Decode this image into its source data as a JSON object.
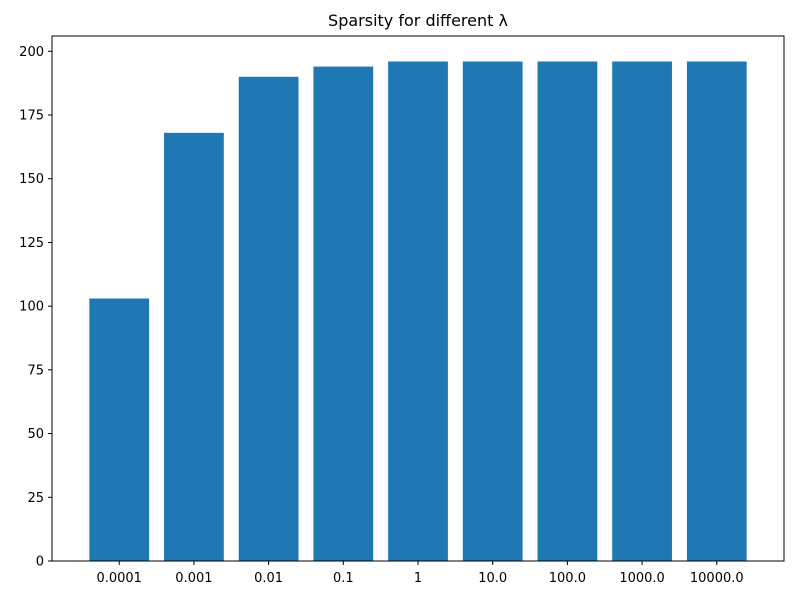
{
  "chart_data": {
    "type": "bar",
    "title": "Sparsity for different λ",
    "xlabel": "",
    "ylabel": "",
    "categories": [
      "0.0001",
      "0.001",
      "0.01",
      "0.1",
      "1",
      "10.0",
      "100.0",
      "1000.0",
      "10000.0"
    ],
    "values": [
      103,
      168,
      190,
      194,
      196,
      196,
      196,
      196,
      196
    ],
    "ylim": [
      0,
      206
    ],
    "yticks": [
      0,
      25,
      50,
      75,
      100,
      125,
      150,
      175,
      200
    ],
    "grid": false,
    "legend": "none",
    "bar_color": "#1f77b4"
  }
}
